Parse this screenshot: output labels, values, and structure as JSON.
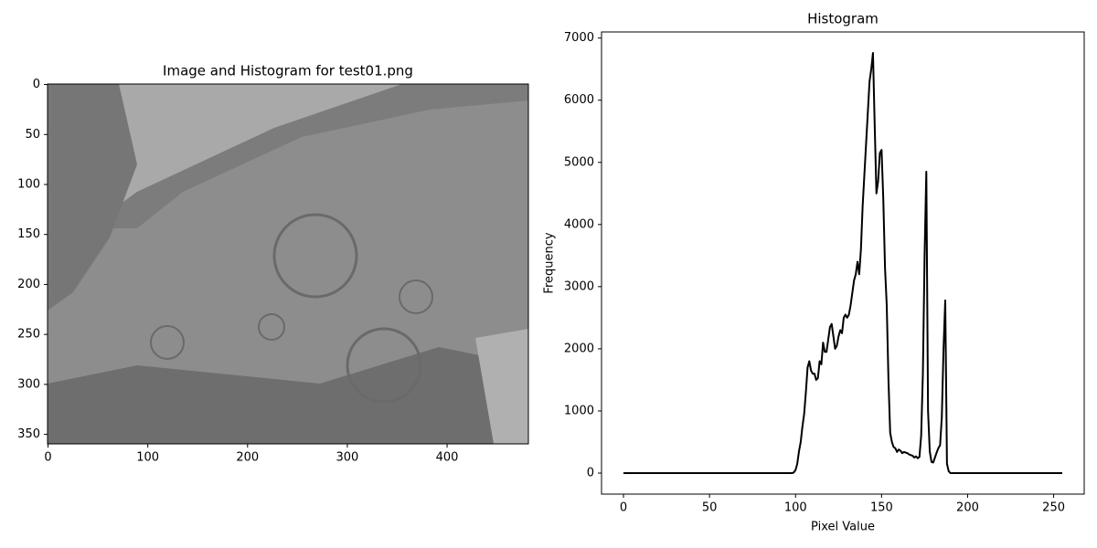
{
  "chart_data": [
    {
      "type": "image",
      "title": "Image and Histogram for test01.png",
      "xlim": [
        -0.5,
        481.5
      ],
      "ylim": [
        359.5,
        -0.5
      ],
      "xticks": [
        0,
        100,
        200,
        300,
        400
      ],
      "yticks": [
        0,
        50,
        100,
        150,
        200,
        250,
        300,
        350
      ]
    },
    {
      "type": "line",
      "title": "Histogram",
      "xlabel": "Pixel Value",
      "ylabel": "Frequency",
      "color": "#000000",
      "xlim": [
        -12.75,
        267.75
      ],
      "ylim": [
        -338,
        7098
      ],
      "xticks": [
        0,
        50,
        100,
        150,
        200,
        250
      ],
      "yticks": [
        0,
        1000,
        2000,
        3000,
        4000,
        5000,
        6000,
        7000
      ],
      "x": [
        0,
        1,
        2,
        3,
        4,
        5,
        6,
        7,
        8,
        9,
        10,
        11,
        12,
        13,
        14,
        15,
        16,
        17,
        18,
        19,
        20,
        21,
        22,
        23,
        24,
        25,
        26,
        27,
        28,
        29,
        30,
        31,
        32,
        33,
        34,
        35,
        36,
        37,
        38,
        39,
        40,
        41,
        42,
        43,
        44,
        45,
        46,
        47,
        48,
        49,
        50,
        51,
        52,
        53,
        54,
        55,
        56,
        57,
        58,
        59,
        60,
        61,
        62,
        63,
        64,
        65,
        66,
        67,
        68,
        69,
        70,
        71,
        72,
        73,
        74,
        75,
        76,
        77,
        78,
        79,
        80,
        81,
        82,
        83,
        84,
        85,
        86,
        87,
        88,
        89,
        90,
        91,
        92,
        93,
        94,
        95,
        96,
        97,
        98,
        99,
        100,
        101,
        102,
        103,
        104,
        105,
        106,
        107,
        108,
        109,
        110,
        111,
        112,
        113,
        114,
        115,
        116,
        117,
        118,
        119,
        120,
        121,
        122,
        123,
        124,
        125,
        126,
        127,
        128,
        129,
        130,
        131,
        132,
        133,
        134,
        135,
        136,
        137,
        138,
        139,
        140,
        141,
        142,
        143,
        144,
        145,
        146,
        147,
        148,
        149,
        150,
        151,
        152,
        153,
        154,
        155,
        156,
        157,
        158,
        159,
        160,
        161,
        162,
        163,
        164,
        165,
        166,
        167,
        168,
        169,
        170,
        171,
        172,
        173,
        174,
        175,
        176,
        177,
        178,
        179,
        180,
        181,
        182,
        183,
        184,
        185,
        186,
        187,
        188,
        189,
        190,
        191,
        192,
        193,
        194,
        195,
        196,
        197,
        198,
        199,
        200,
        201,
        202,
        203,
        204,
        205,
        206,
        207,
        208,
        209,
        210,
        211,
        212,
        213,
        214,
        215,
        216,
        217,
        218,
        219,
        220,
        221,
        222,
        223,
        224,
        225,
        226,
        227,
        228,
        229,
        230,
        231,
        232,
        233,
        234,
        235,
        236,
        237,
        238,
        239,
        240,
        241,
        242,
        243,
        244,
        245,
        246,
        247,
        248,
        249,
        250,
        251,
        252,
        253,
        254,
        255
      ],
      "values": [
        0,
        0,
        0,
        0,
        0,
        0,
        0,
        0,
        0,
        0,
        0,
        0,
        0,
        0,
        0,
        0,
        0,
        0,
        0,
        0,
        0,
        0,
        0,
        0,
        0,
        0,
        0,
        0,
        0,
        0,
        0,
        0,
        0,
        0,
        0,
        0,
        0,
        0,
        0,
        0,
        0,
        0,
        0,
        0,
        0,
        0,
        0,
        0,
        0,
        0,
        0,
        0,
        0,
        0,
        0,
        0,
        0,
        0,
        0,
        0,
        0,
        0,
        0,
        0,
        0,
        0,
        0,
        0,
        0,
        0,
        0,
        0,
        0,
        0,
        0,
        0,
        0,
        0,
        0,
        0,
        0,
        0,
        0,
        0,
        0,
        0,
        0,
        0,
        0,
        0,
        0,
        0,
        0,
        0,
        0,
        0,
        0,
        0,
        0,
        10,
        50,
        150,
        350,
        500,
        750,
        950,
        1300,
        1700,
        1800,
        1650,
        1600,
        1600,
        1500,
        1530,
        1800,
        1750,
        2100,
        1950,
        1950,
        2150,
        2350,
        2400,
        2200,
        2000,
        2050,
        2200,
        2300,
        2250,
        2500,
        2550,
        2500,
        2550,
        2700,
        2900,
        3100,
        3200,
        3400,
        3200,
        3600,
        4300,
        4800,
        5300,
        5800,
        6300,
        6500,
        6760,
        5600,
        4500,
        4700,
        5150,
        5200,
        4400,
        3300,
        2700,
        1500,
        650,
        500,
        420,
        400,
        340,
        380,
        360,
        320,
        340,
        330,
        320,
        300,
        290,
        280,
        250,
        270,
        240,
        260,
        600,
        1600,
        3500,
        4850,
        1000,
        350,
        180,
        170,
        250,
        330,
        400,
        450,
        900,
        2000,
        2780,
        150,
        30,
        0,
        0,
        0,
        0,
        0,
        0,
        0,
        0,
        0,
        0,
        0,
        0,
        0,
        0,
        0,
        0,
        0,
        0,
        0,
        0,
        0,
        0,
        0,
        0,
        0,
        0,
        0,
        0,
        0,
        0,
        0,
        0,
        0,
        0,
        0,
        0,
        0,
        0,
        0,
        0,
        0,
        0,
        0,
        0,
        0,
        0,
        0,
        0,
        0,
        0,
        0,
        0,
        0,
        0,
        0,
        0,
        0,
        0,
        0,
        0,
        0,
        0,
        0,
        0,
        0,
        0
      ]
    }
  ]
}
